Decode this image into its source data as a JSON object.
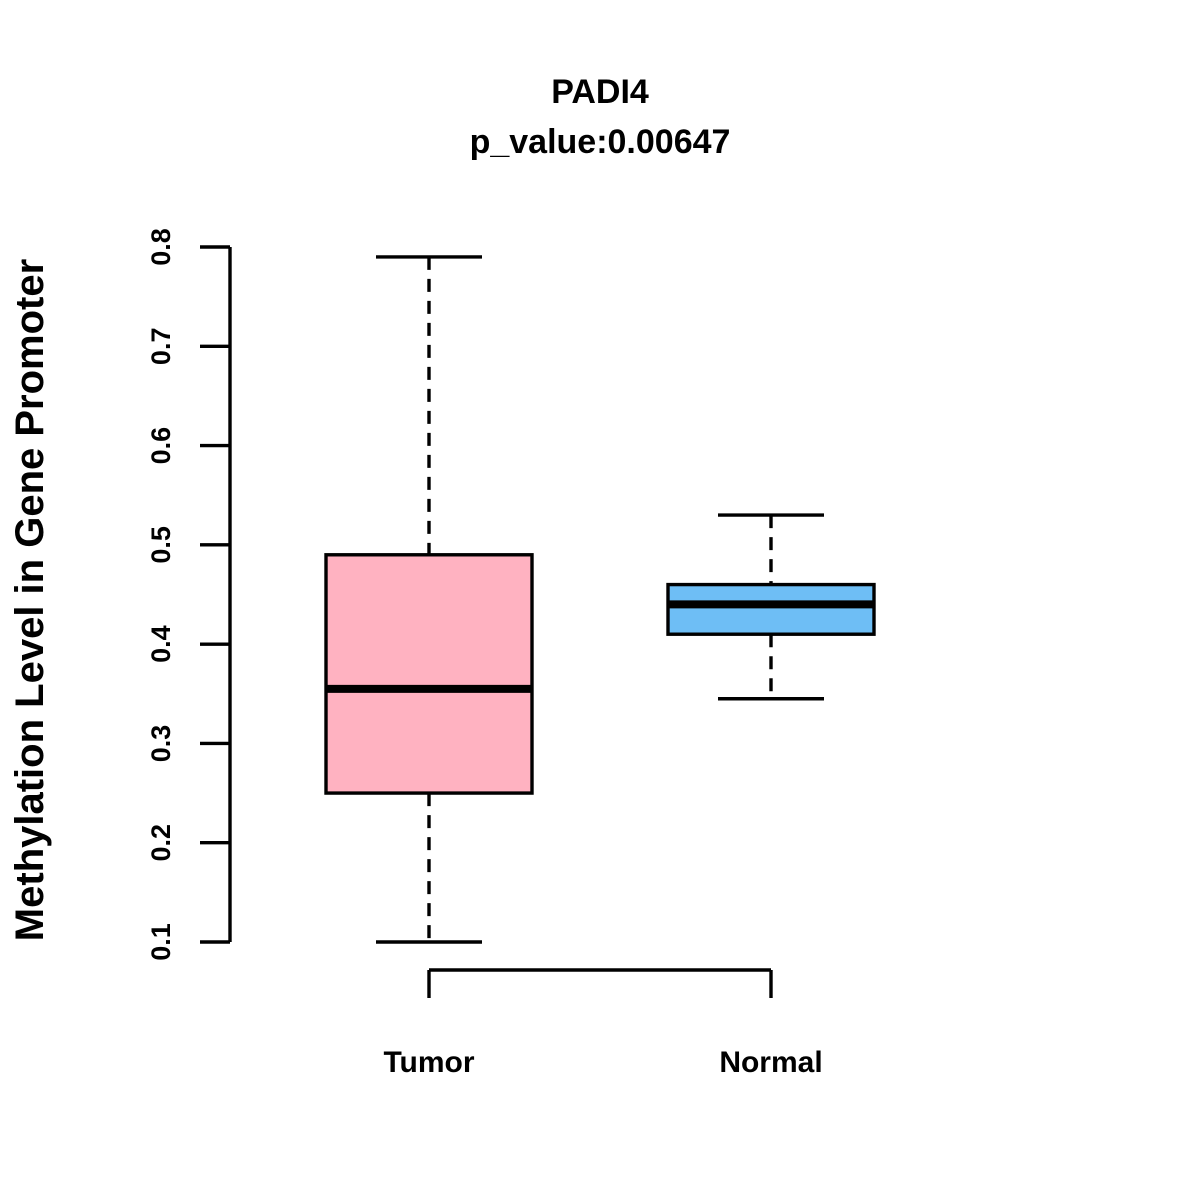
{
  "chart_data": {
    "type": "boxplot",
    "title": "PADI4",
    "subtitle": "p_value:0.00647",
    "ylabel": "Methylation Level in Gene Promoter",
    "xlabel": "",
    "ylim": [
      0.1,
      0.8
    ],
    "yticks": [
      0.1,
      0.2,
      0.3,
      0.4,
      0.5,
      0.6,
      0.7,
      0.8
    ],
    "ytick_decimals": 1,
    "categories": [
      "Tumor",
      "Normal"
    ],
    "series": [
      {
        "name": "Tumor",
        "fill_color": "#FFB2C1",
        "whisker_low": 0.1,
        "q1": 0.25,
        "median": 0.355,
        "q3": 0.49,
        "whisker_high": 0.79
      },
      {
        "name": "Normal",
        "fill_color": "#6EBEF5",
        "whisker_low": 0.345,
        "q1": 0.41,
        "median": 0.44,
        "q3": 0.46,
        "whisker_high": 0.53
      }
    ],
    "border_color": "#000000",
    "background_color": "#FFFFFF",
    "grid": false,
    "legend": "none",
    "whisker_style": "dashed",
    "outliers": []
  }
}
